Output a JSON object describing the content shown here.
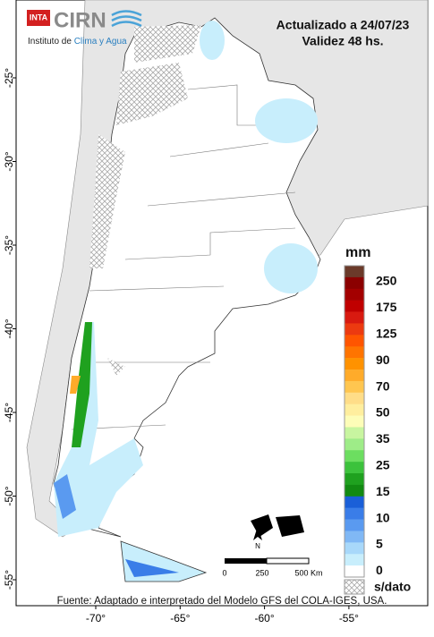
{
  "header": {
    "logo": "INTA",
    "org": "CIRN",
    "institute": "Instituto de",
    "institute_highlight": "Clima y Agua",
    "updated": "Actualizado a 24/07/23",
    "validity": "Validez 48 hs."
  },
  "legend": {
    "unit": "mm",
    "labels": [
      "250",
      "175",
      "125",
      "90",
      "70",
      "50",
      "35",
      "25",
      "15",
      "10",
      "5",
      "0"
    ],
    "no_data": "s/dato",
    "colors": [
      "#6b3a2a",
      "#8b0000",
      "#a30000",
      "#c00000",
      "#d81a10",
      "#ec3a10",
      "#ff5500",
      "#ff7400",
      "#ff9200",
      "#ffab2a",
      "#ffc650",
      "#ffdd88",
      "#ffee9e",
      "#fdfdb8",
      "#c8f5a0",
      "#9eec88",
      "#6cde60",
      "#3cc23c",
      "#1fa11f",
      "#128a12",
      "#1a5fd8",
      "#3a7de8",
      "#5a9af0",
      "#80b8f5",
      "#a8d8fa",
      "#c8eefc",
      "#ffffff"
    ]
  },
  "axes": {
    "lat": [
      "-25°",
      "-30°",
      "-35°",
      "-40°",
      "-45°",
      "-50°",
      "-55°"
    ],
    "lon": [
      "-70°",
      "-65°",
      "-60°",
      "-55°"
    ]
  },
  "scale": {
    "labels": [
      "0",
      "250",
      "500 Km"
    ],
    "north": "N"
  },
  "source": "Fuente: Adaptado e interpretado del Modelo GFS del COLA-IGES, USA."
}
